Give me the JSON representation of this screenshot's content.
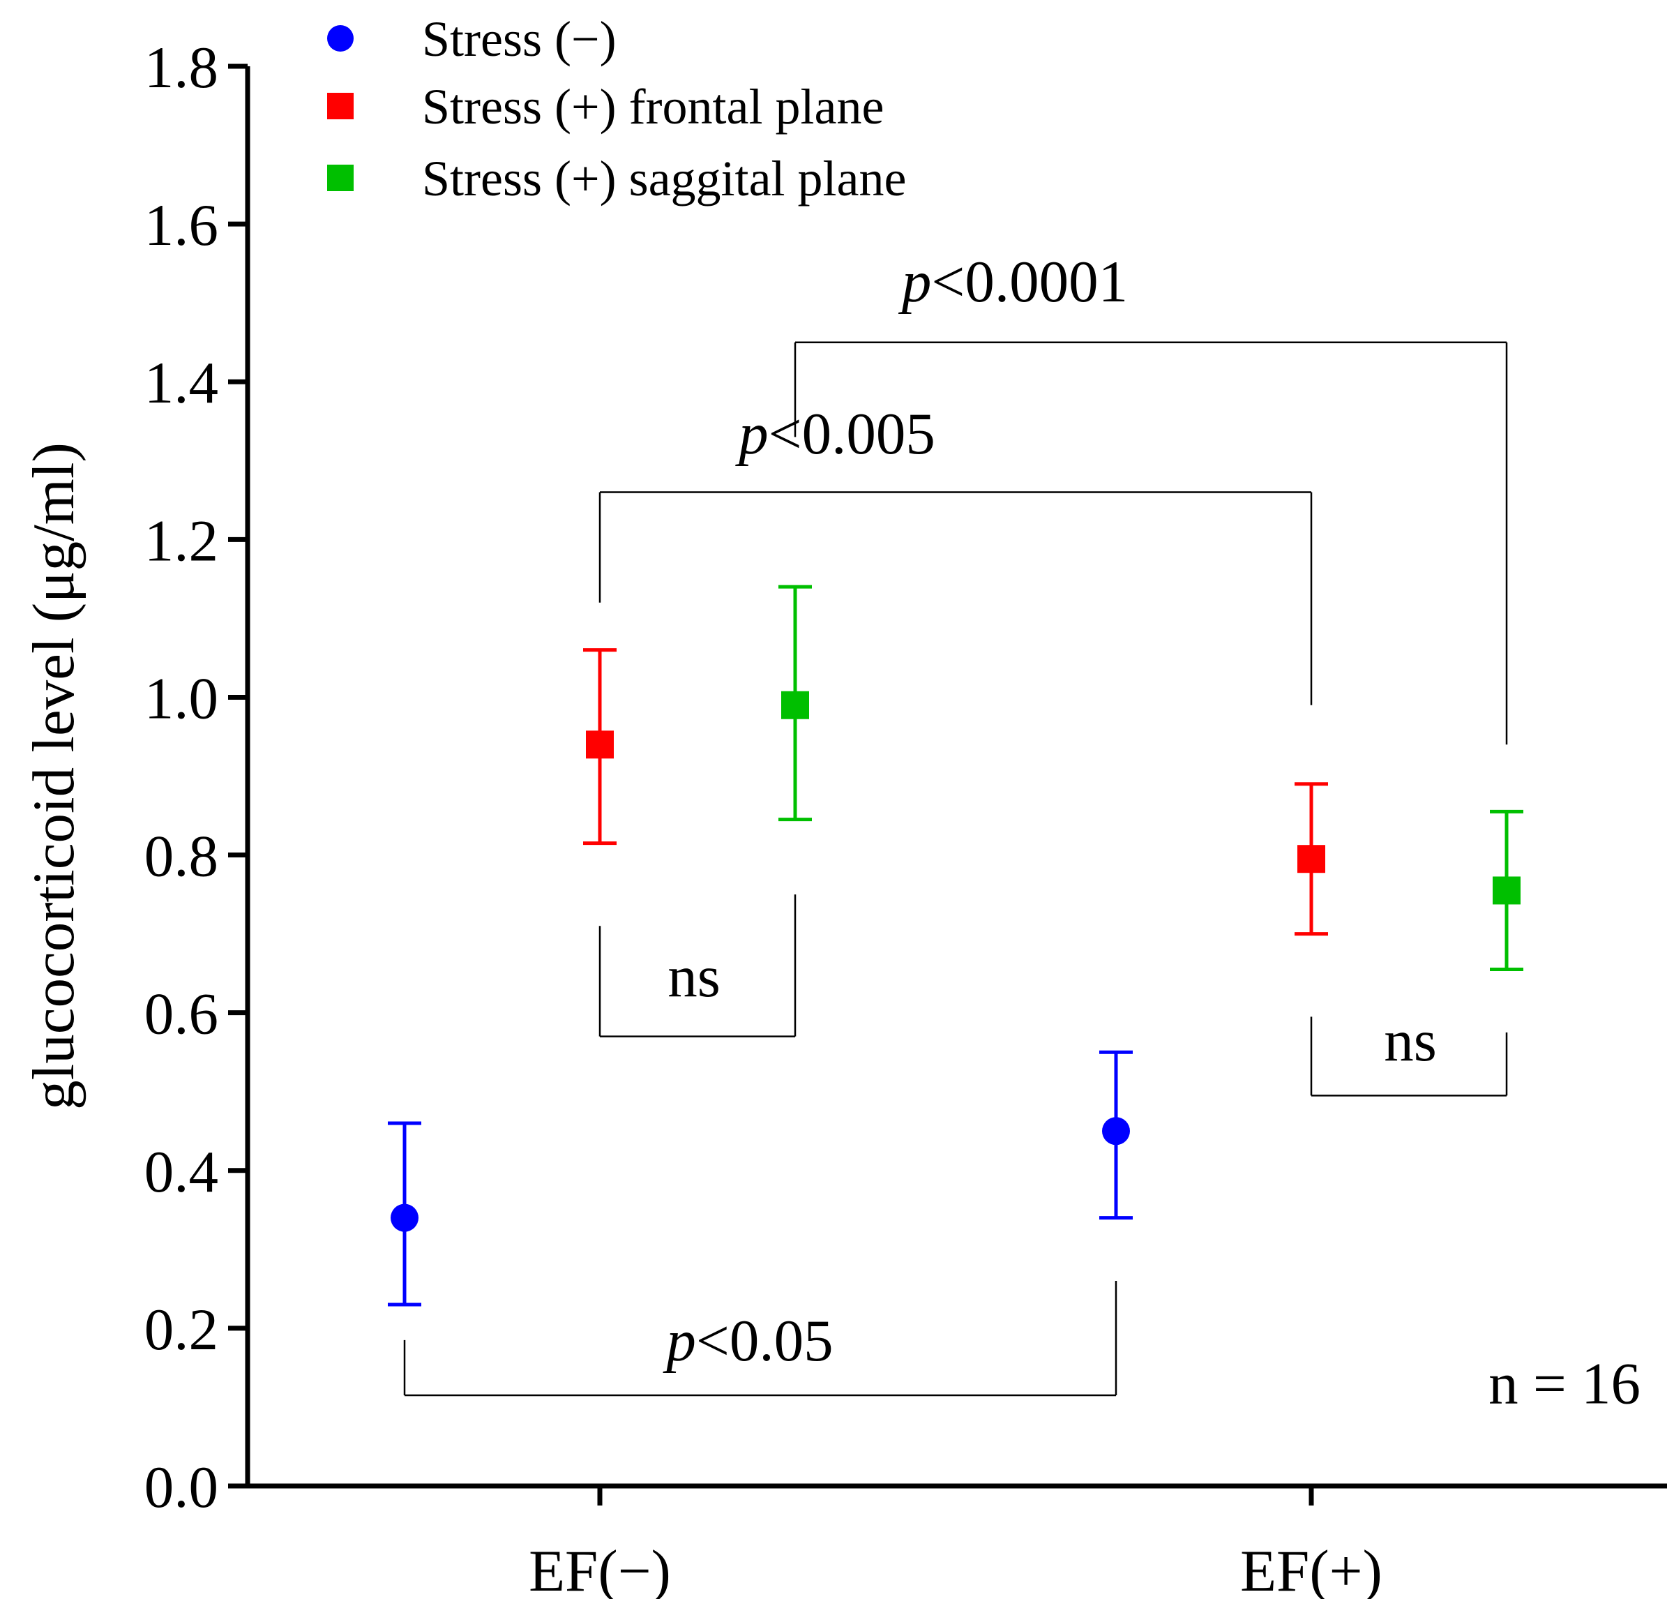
{
  "chart_data": {
    "type": "scatter",
    "categories": [
      "EF(−)",
      "EF(+)"
    ],
    "ylabel": "glucocorticoid level (μg/ml)",
    "xlabel": "",
    "ylim": [
      0.0,
      1.8
    ],
    "yticks": [
      "0.0",
      "0.2",
      "0.4",
      "0.6",
      "0.8",
      "1.0",
      "1.2",
      "1.4",
      "1.6",
      "1.8"
    ],
    "legend_position": "top-left",
    "series": [
      {
        "name": "Stress (−)",
        "marker": "circle",
        "color": "#0000ff",
        "points": [
          {
            "category": 0,
            "offset": -1,
            "value": 0.34,
            "err_low": 0.23,
            "err_high": 0.46
          },
          {
            "category": 1,
            "offset": -1,
            "value": 0.45,
            "err_low": 0.34,
            "err_high": 0.55
          }
        ]
      },
      {
        "name": "Stress (+) frontal plane",
        "marker": "square",
        "color": "#ff0000",
        "points": [
          {
            "category": 0,
            "offset": 0,
            "value": 0.94,
            "err_low": 0.815,
            "err_high": 1.06
          },
          {
            "category": 1,
            "offset": 0,
            "value": 0.795,
            "err_low": 0.7,
            "err_high": 0.89
          }
        ]
      },
      {
        "name": "Stress (+) saggital plane",
        "marker": "square",
        "color": "#00bf00",
        "points": [
          {
            "category": 0,
            "offset": 1,
            "value": 0.99,
            "err_low": 0.845,
            "err_high": 1.14
          },
          {
            "category": 1,
            "offset": 1,
            "value": 0.755,
            "err_low": 0.655,
            "err_high": 0.855
          }
        ]
      }
    ],
    "annotations": [
      {
        "id": "p0001",
        "p_symbol": "p",
        "text": "<0.0001",
        "from": "1:1",
        "to": "2:1",
        "bar_value": 1.45,
        "left_end": 1.33,
        "right_end": 0.94
      },
      {
        "id": "p005",
        "p_symbol": "p",
        "text": "<0.005",
        "from": "1:0",
        "to": "2:0",
        "bar_value": 1.26,
        "left_end": 1.12,
        "right_end": 0.99
      },
      {
        "id": "ns1",
        "p_symbol": "",
        "text": "ns",
        "from": "1:0",
        "to": "1:1",
        "bar_value": 0.57,
        "left_end": 0.71,
        "right_end": 0.75,
        "below": true
      },
      {
        "id": "ns2",
        "p_symbol": "",
        "text": "ns",
        "from": "2:0",
        "to": "2:1",
        "bar_value": 0.495,
        "left_end": 0.595,
        "right_end": 0.575,
        "below": true
      },
      {
        "id": "p05",
        "p_symbol": "p",
        "text": "<0.05",
        "from": "1:-1",
        "to": "2:-1",
        "bar_value": 0.115,
        "left_end": 0.185,
        "right_end": 0.26,
        "below": true
      }
    ],
    "sample_size": "n = 16"
  }
}
